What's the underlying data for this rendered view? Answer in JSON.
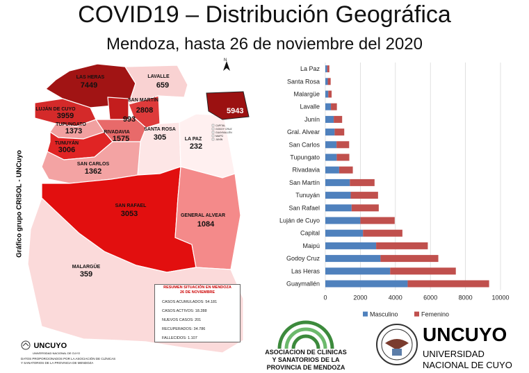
{
  "header": {
    "title": "COVID19 – Distribución Geográfica",
    "subtitle": "Mendoza, hasta 26 de noviembre del 2020"
  },
  "side_credit": "Gráfico grupo CRISOL - UNCuyo",
  "map": {
    "departments": [
      {
        "name": "LAS HERAS",
        "value": "7449",
        "color": "#a11414"
      },
      {
        "name": "LAVALLE",
        "value": "659",
        "color": "#f9d2d2"
      },
      {
        "name": "LUJÁN DE CUYO",
        "value": "3959",
        "color": "#d42a2a"
      },
      {
        "name": "SAN MARTÍN",
        "value": "2808",
        "color": "#de3b3b"
      },
      {
        "name": "",
        "value": "993",
        "color": "#c41d1d"
      },
      {
        "name": "TUPUNGATO",
        "value": "1373",
        "color": "#f1a0a0"
      },
      {
        "name": "RIVADAVIA",
        "value": "1575",
        "color": "#e86a6a"
      },
      {
        "name": "SANTA ROSA",
        "value": "305",
        "color": "#fde6e6"
      },
      {
        "name": "LA PAZ",
        "value": "232",
        "color": "#fff0f0"
      },
      {
        "name": "TUNUYÁN",
        "value": "3006",
        "color": "#e02424"
      },
      {
        "name": "SAN CARLOS",
        "value": "1362",
        "color": "#f3a3a3"
      },
      {
        "name": "SAN RAFAEL",
        "value": "3053",
        "color": "#e20f0f"
      },
      {
        "name": "GENERAL ALVEAR",
        "value": "1084",
        "color": "#f48a8a"
      },
      {
        "name": "MALARGÜE",
        "value": "359",
        "color": "#fbdada"
      }
    ],
    "inset": {
      "value": "5943",
      "legend": [
        "CAPITAL",
        "GODOY CRUZ",
        "GUAYMALLÉN",
        "MAIPÚ",
        "JUNÍN"
      ]
    }
  },
  "summary": {
    "title_line1": "RESUMEN SITUACIÓN EN MENDOZA",
    "title_line2": "26 DE NOVIEMBRE",
    "rows": [
      "CASOS ACUMULADOS: 54.181",
      "CASOS ACTIVOS: 18.288",
      "NUEVOS CASOS: 201",
      "RECUPERADOS: 34.786",
      "FALLECIDOS: 1.107"
    ]
  },
  "footer": {
    "uncuyo_small": "UNCUYO",
    "uncuyo_small_sub": "UNIVERSIDAD NACIONAL DE CUYO",
    "footnote_line1": "DATOS PROPORCIONADOS POR LA ASOCIACIÓN DE CLÍNICAS",
    "footnote_line2": "Y SANATORIOS DE LA PROVINCIA DE MENDOZA",
    "clinicas_line1": "ASOCIACION DE CLINICAS",
    "clinicas_line2": "Y SANATORIOS DE LA",
    "clinicas_line3": "PROVINCIA DE MENDOZA",
    "uncuyo_big": "UNCUYO",
    "uncuyo_big_line1": "UNIVERSIDAD",
    "uncuyo_big_line2": "NACIONAL DE CUYO"
  },
  "chart_data": {
    "type": "bar",
    "orientation": "horizontal",
    "stacked": true,
    "categories": [
      "La Paz",
      "Santa Rosa",
      "Malargüe",
      "Lavalle",
      "Junín",
      "Gral. Alvear",
      "San Carlos",
      "Tupungato",
      "Rivadavia",
      "San Martín",
      "Tunuyán",
      "San Rafael",
      "Luján de Cuyo",
      "Capital",
      "Maipú",
      "Godoy Cruz",
      "Las Heras",
      "Guaymallén"
    ],
    "series": [
      {
        "name": "Masculino",
        "color": "#4f81bd",
        "values": [
          110,
          140,
          170,
          320,
          480,
          530,
          640,
          650,
          790,
          1400,
          1450,
          1500,
          2000,
          2150,
          2900,
          3150,
          3700,
          4700
        ]
      },
      {
        "name": "Femenino",
        "color": "#c0504d",
        "values": [
          120,
          165,
          190,
          340,
          480,
          550,
          720,
          720,
          780,
          1410,
          1560,
          1550,
          1960,
          2250,
          2950,
          3300,
          3750,
          4650
        ]
      }
    ],
    "xlim": [
      0,
      10000
    ],
    "xticks": [
      "0",
      "2000",
      "4000",
      "6000",
      "8000",
      "10000"
    ],
    "grid": true,
    "legend_position": "bottom"
  }
}
